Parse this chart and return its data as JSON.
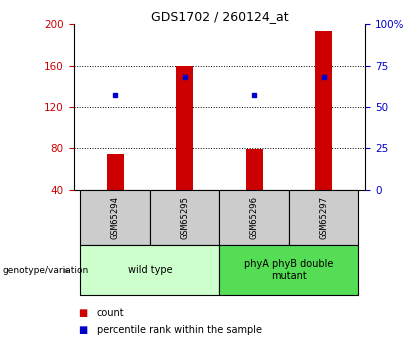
{
  "title": "GDS1702 / 260124_at",
  "samples": [
    "GSM65294",
    "GSM65295",
    "GSM65296",
    "GSM65297"
  ],
  "count_values": [
    75,
    160,
    79,
    193
  ],
  "percentile_values": [
    57,
    68,
    57,
    68
  ],
  "bar_bottom": 40,
  "ylim_left": [
    40,
    200
  ],
  "ylim_right": [
    0,
    100
  ],
  "yticks_left": [
    40,
    80,
    120,
    160,
    200
  ],
  "yticks_right": [
    0,
    25,
    50,
    75,
    100
  ],
  "ytick_labels_right": [
    "0",
    "25",
    "50",
    "75",
    "100%"
  ],
  "left_axis_color": "#cc0000",
  "right_axis_color": "#0000cc",
  "bar_color": "#cc0000",
  "percentile_color": "#0000cc",
  "groups": [
    {
      "label": "wild type",
      "indices": [
        0,
        1
      ],
      "color": "#ccffcc"
    },
    {
      "label": "phyA phyB double\nmutant",
      "indices": [
        2,
        3
      ],
      "color": "#55dd55"
    }
  ],
  "genotype_label": "genotype/variation",
  "legend_items": [
    {
      "color": "#cc0000",
      "label": "count"
    },
    {
      "color": "#0000cc",
      "label": "percentile rank within the sample"
    }
  ],
  "sample_box_color": "#cccccc",
  "bar_width": 0.25
}
